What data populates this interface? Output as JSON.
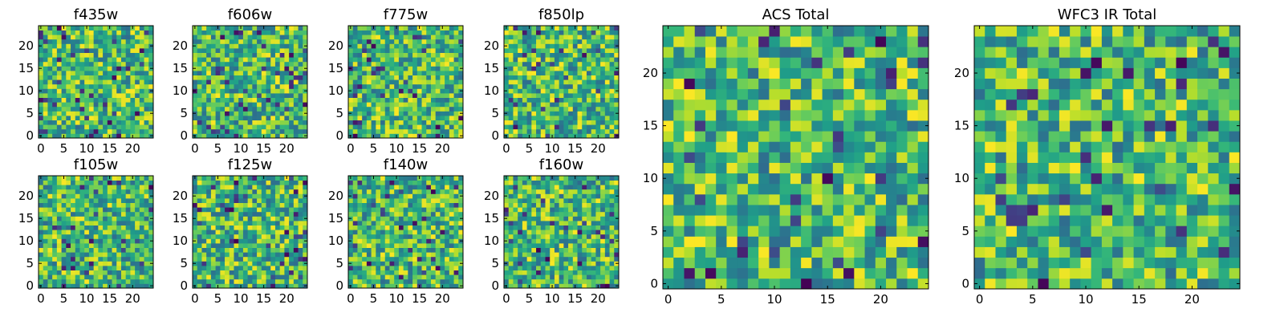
{
  "chart_data": [
    {
      "type": "heatmap",
      "title": "f435w",
      "xticks": [
        "0",
        "5",
        "10",
        "15",
        "20"
      ],
      "yticks": [
        "0",
        "5",
        "10",
        "15",
        "20"
      ],
      "xlim": [
        0,
        25
      ],
      "ylim": [
        0,
        25
      ],
      "colormap": "viridis",
      "grid": false,
      "seed": 11
    },
    {
      "type": "heatmap",
      "title": "f606w",
      "xticks": [
        "0",
        "5",
        "10",
        "15",
        "20"
      ],
      "yticks": [
        "0",
        "5",
        "10",
        "15",
        "20"
      ],
      "xlim": [
        0,
        25
      ],
      "ylim": [
        0,
        25
      ],
      "colormap": "viridis",
      "grid": false,
      "seed": 23
    },
    {
      "type": "heatmap",
      "title": "f775w",
      "xticks": [
        "0",
        "5",
        "10",
        "15",
        "20"
      ],
      "yticks": [
        "0",
        "5",
        "10",
        "15",
        "20"
      ],
      "xlim": [
        0,
        25
      ],
      "ylim": [
        0,
        25
      ],
      "colormap": "viridis",
      "grid": false,
      "seed": 37
    },
    {
      "type": "heatmap",
      "title": "f850lp",
      "xticks": [
        "0",
        "5",
        "10",
        "15",
        "20"
      ],
      "yticks": [
        "0",
        "5",
        "10",
        "15",
        "20"
      ],
      "xlim": [
        0,
        25
      ],
      "ylim": [
        0,
        25
      ],
      "colormap": "viridis",
      "grid": false,
      "seed": 41
    },
    {
      "type": "heatmap",
      "title": "f105w",
      "xticks": [
        "0",
        "5",
        "10",
        "15",
        "20"
      ],
      "yticks": [
        "0",
        "5",
        "10",
        "15",
        "20"
      ],
      "xlim": [
        0,
        25
      ],
      "ylim": [
        0,
        25
      ],
      "colormap": "viridis",
      "grid": false,
      "seed": 53
    },
    {
      "type": "heatmap",
      "title": "f125w",
      "xticks": [
        "0",
        "5",
        "10",
        "15",
        "20"
      ],
      "yticks": [
        "0",
        "5",
        "10",
        "15",
        "20"
      ],
      "xlim": [
        0,
        25
      ],
      "ylim": [
        0,
        25
      ],
      "colormap": "viridis",
      "grid": false,
      "seed": 67
    },
    {
      "type": "heatmap",
      "title": "f140w",
      "xticks": [
        "0",
        "5",
        "10",
        "15",
        "20"
      ],
      "yticks": [
        "0",
        "5",
        "10",
        "15",
        "20"
      ],
      "xlim": [
        0,
        25
      ],
      "ylim": [
        0,
        25
      ],
      "colormap": "viridis",
      "grid": false,
      "seed": 71
    },
    {
      "type": "heatmap",
      "title": "f160w",
      "xticks": [
        "0",
        "5",
        "10",
        "15",
        "20"
      ],
      "yticks": [
        "0",
        "5",
        "10",
        "15",
        "20"
      ],
      "xlim": [
        0,
        25
      ],
      "ylim": [
        0,
        25
      ],
      "colormap": "viridis",
      "grid": false,
      "seed": 83
    },
    {
      "type": "heatmap",
      "title": "ACS Total",
      "xticks": [
        "0",
        "5",
        "10",
        "15",
        "20"
      ],
      "yticks": [
        "0",
        "5",
        "10",
        "15",
        "20"
      ],
      "xlim": [
        0,
        25
      ],
      "ylim": [
        0,
        25
      ],
      "colormap": "viridis",
      "grid": false,
      "seed": 97
    },
    {
      "type": "heatmap",
      "title": "WFC3 IR Total",
      "xticks": [
        "0",
        "5",
        "10",
        "15",
        "20"
      ],
      "yticks": [
        "0",
        "5",
        "10",
        "15",
        "20"
      ],
      "xlim": [
        0,
        25
      ],
      "ylim": [
        0,
        25
      ],
      "colormap": "viridis",
      "grid": false,
      "seed": 101
    }
  ]
}
